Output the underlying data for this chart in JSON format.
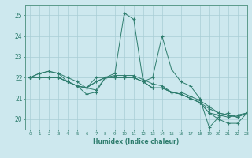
{
  "title": "",
  "xlabel": "Humidex (Indice chaleur)",
  "ylabel": "",
  "xlim": [
    -0.5,
    23
  ],
  "ylim": [
    19.5,
    25.5
  ],
  "yticks": [
    20,
    21,
    22,
    23,
    24,
    25
  ],
  "xticks": [
    0,
    1,
    2,
    3,
    4,
    5,
    6,
    7,
    8,
    9,
    10,
    11,
    12,
    13,
    14,
    15,
    16,
    17,
    18,
    19,
    20,
    21,
    22,
    23
  ],
  "bg_color": "#cde8ee",
  "grid_color": "#a8cdd5",
  "line_color": "#2e7d6e",
  "spine_color": "#5a9a8a",
  "lines": [
    [
      22.0,
      22.2,
      22.3,
      22.2,
      21.8,
      21.6,
      21.2,
      21.3,
      22.0,
      22.2,
      25.1,
      24.8,
      21.8,
      22.0,
      24.0,
      22.4,
      21.8,
      21.6,
      21.0,
      19.6,
      20.1,
      20.3,
      null,
      null
    ],
    [
      22.0,
      22.0,
      22.0,
      22.0,
      21.8,
      21.6,
      21.5,
      22.0,
      22.0,
      22.0,
      22.0,
      22.0,
      21.8,
      21.5,
      21.5,
      21.3,
      21.2,
      21.0,
      20.8,
      20.5,
      20.3,
      20.2,
      20.1,
      20.3
    ],
    [
      22.0,
      22.0,
      22.0,
      22.0,
      21.8,
      21.6,
      21.5,
      21.8,
      22.0,
      22.0,
      22.0,
      22.0,
      21.8,
      21.5,
      21.5,
      21.3,
      21.2,
      21.0,
      20.8,
      20.3,
      20.0,
      19.8,
      19.8,
      20.3
    ],
    [
      22.0,
      22.0,
      22.0,
      22.0,
      21.8,
      21.6,
      21.5,
      21.8,
      22.0,
      22.0,
      22.0,
      22.0,
      21.8,
      21.5,
      21.5,
      21.3,
      21.2,
      21.0,
      20.8,
      20.3,
      20.2,
      20.1,
      20.2,
      20.3
    ],
    [
      22.0,
      22.2,
      22.3,
      22.2,
      22.0,
      21.8,
      21.5,
      21.4,
      22.0,
      22.1,
      22.1,
      22.1,
      21.9,
      21.7,
      21.6,
      21.3,
      21.3,
      21.1,
      20.9,
      20.6,
      20.3,
      20.2,
      20.1,
      20.3
    ]
  ]
}
